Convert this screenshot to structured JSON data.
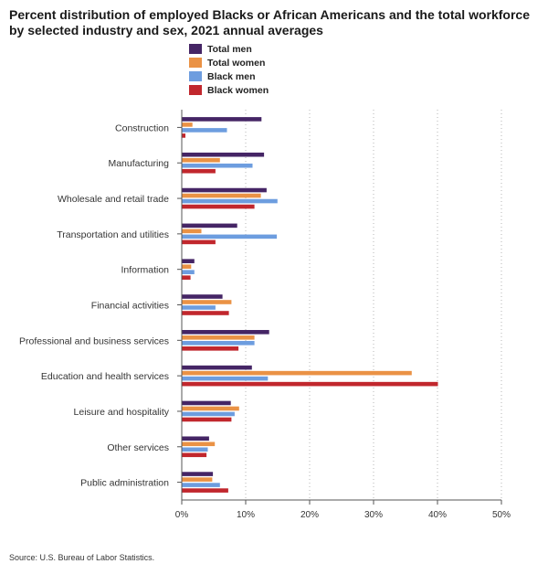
{
  "title": "Percent distribution of employed Blacks or African Americans and the total workforce by selected industry and sex, 2021 annual averages",
  "source": "Source: U.S. Bureau of Labor Statistics.",
  "chart_data": {
    "type": "bar",
    "orientation": "horizontal",
    "title": "Percent distribution of employed Blacks or African Americans and the total workforce by selected industry and sex, 2021 annual averages",
    "categories": [
      "Construction",
      "Manufacturing",
      "Wholesale and retail trade",
      "Transportation and utilities",
      "Information",
      "Financial activities",
      "Professional and business services",
      "Education and health services",
      "Leisure and hospitality",
      "Other services",
      "Public administration"
    ],
    "series": [
      {
        "name": "Total men",
        "color": "#452565",
        "values": [
          12.4,
          12.8,
          13.2,
          8.6,
          1.9,
          6.3,
          13.6,
          10.9,
          7.6,
          4.2,
          4.8
        ]
      },
      {
        "name": "Total women",
        "color": "#ea9245",
        "values": [
          1.6,
          5.9,
          12.3,
          3.0,
          1.4,
          7.7,
          11.3,
          35.9,
          8.9,
          5.1,
          4.7
        ]
      },
      {
        "name": "Black men",
        "color": "#6d9ddf",
        "values": [
          7.0,
          11.0,
          14.9,
          14.8,
          1.9,
          5.2,
          11.3,
          13.4,
          8.2,
          4.0,
          5.9
        ]
      },
      {
        "name": "Black women",
        "color": "#c1272d",
        "values": [
          0.5,
          5.2,
          11.3,
          5.2,
          1.3,
          7.3,
          8.8,
          40.0,
          7.7,
          3.8,
          7.2
        ]
      }
    ],
    "xlim": [
      0,
      50
    ],
    "xticks": [
      "0%",
      "10%",
      "20%",
      "30%",
      "40%",
      "50%"
    ],
    "grid": "vertical dotted",
    "legend_position": "top"
  }
}
